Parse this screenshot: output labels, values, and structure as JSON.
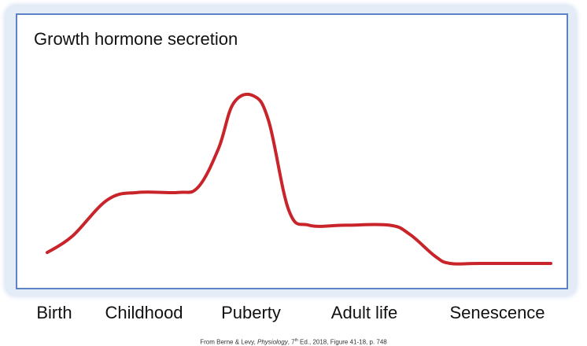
{
  "chart_data": {
    "type": "line",
    "title": "Growth hormone secretion",
    "xlabel": "",
    "ylabel": "",
    "categories": [
      "Birth",
      "Childhood",
      "Puberty",
      "Adult life",
      "Senescence"
    ],
    "y_axis_numeric": false,
    "x": [
      0,
      0.05,
      0.12,
      0.18,
      0.26,
      0.3,
      0.34,
      0.37,
      0.41,
      0.44,
      0.48,
      0.52,
      0.59,
      0.68,
      0.72,
      0.77,
      0.8,
      0.86,
      1.0
    ],
    "values": [
      0.06,
      0.15,
      0.35,
      0.39,
      0.39,
      0.42,
      0.63,
      0.88,
      0.92,
      0.78,
      0.29,
      0.21,
      0.21,
      0.21,
      0.16,
      0.04,
      0.0,
      0.0,
      0.0
    ],
    "series": [
      {
        "values": [
          0.06,
          0.15,
          0.35,
          0.39,
          0.39,
          0.42,
          0.63,
          0.88,
          0.92,
          0.78,
          0.29,
          0.21,
          0.21,
          0.21,
          0.16,
          0.04,
          0.0,
          0.0,
          0.0
        ],
        "color": "#c8242a"
      }
    ],
    "grid": false,
    "legend": "none",
    "colors": {
      "curve": "#c8242a",
      "frame": "#5e83c4"
    }
  },
  "labels": {
    "title": "Growth hormone secretion",
    "stages": [
      "Birth",
      "Childhood",
      "Puberty",
      "Adult life",
      "Senescence"
    ]
  },
  "source": {
    "before_sup": "From Berne & Levy, ",
    "italic": "Physiology",
    "edition_number": ", 7",
    "sup": "th",
    "after_sup": " Ed., 2018, Figure 41-18, p. 748"
  }
}
